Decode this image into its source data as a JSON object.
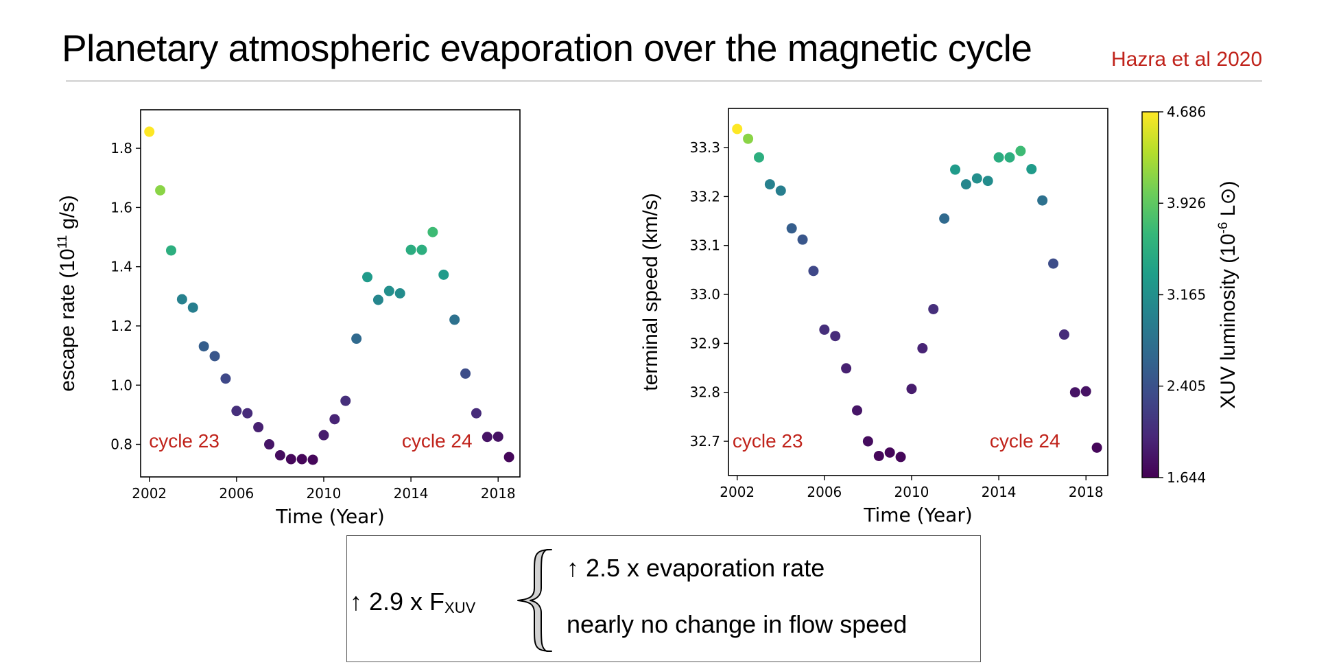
{
  "slide": {
    "title": "Planetary atmospheric evaporation over the magnetic cycle",
    "citation": "Hazra et al 2020",
    "colors": {
      "citation": "#c0231b",
      "annotation": "#c0231b"
    }
  },
  "chart_data": [
    {
      "type": "scatter",
      "xlabel": "Time (Year)",
      "ylabel": "escape rate (10",
      "ylabel_sup": "11",
      "ylabel_tail": " g/s)",
      "xlim": [
        2001.6,
        2019.0
      ],
      "ylim": [
        0.69,
        1.93
      ],
      "xticks": [
        2002,
        2006,
        2010,
        2014,
        2018
      ],
      "xtick_labels": [
        "2002",
        "2006",
        "2010",
        "2014",
        "2018"
      ],
      "yticks": [
        0.8,
        1.0,
        1.2,
        1.4,
        1.6,
        1.8
      ],
      "ytick_labels": [
        "0.8",
        "1.0",
        "1.2",
        "1.4",
        "1.6",
        "1.8"
      ],
      "annotations": [
        {
          "text": "cycle 23",
          "x": 2003.6,
          "y": 0.81
        },
        {
          "text": "cycle 24",
          "x": 2015.2,
          "y": 0.81
        }
      ],
      "series": [
        {
          "x": [
            2002.0,
            2002.5,
            2003.0,
            2003.5,
            2004.0,
            2004.5,
            2005.0,
            2005.5,
            2006.0,
            2006.5,
            2007.0,
            2007.5,
            2008.0,
            2008.5,
            2009.0,
            2009.5,
            2010.0,
            2010.5,
            2011.0,
            2011.5,
            2012.0,
            2012.5,
            2013.0,
            2013.5,
            2014.0,
            2014.5,
            2015.0,
            2015.5,
            2016.0,
            2016.5,
            2017.0,
            2017.5,
            2018.0,
            2018.5
          ],
          "y": [
            1.856,
            1.658,
            1.455,
            1.29,
            1.262,
            1.131,
            1.098,
            1.022,
            0.913,
            0.905,
            0.858,
            0.8,
            0.763,
            0.75,
            0.75,
            0.748,
            0.831,
            0.885,
            0.947,
            1.157,
            1.365,
            1.288,
            1.318,
            1.31,
            1.457,
            1.457,
            1.517,
            1.373,
            1.221,
            1.039,
            0.905,
            0.825,
            0.826,
            0.757
          ],
          "color_values": [
            4.686,
            4.15,
            3.55,
            2.98,
            2.95,
            2.55,
            2.45,
            2.3,
            2.05,
            2.02,
            1.92,
            1.82,
            1.74,
            1.7,
            1.69,
            1.7,
            1.88,
            1.95,
            2.05,
            2.68,
            3.3,
            3.05,
            3.15,
            3.12,
            3.52,
            3.55,
            3.72,
            3.3,
            2.78,
            2.35,
            2.02,
            1.8,
            1.79,
            1.7
          ]
        }
      ]
    },
    {
      "type": "scatter",
      "xlabel": "Time (Year)",
      "ylabel": "terminal speed (km/s)",
      "xlim": [
        2001.6,
        2019.0
      ],
      "ylim": [
        32.63,
        33.38
      ],
      "xticks": [
        2002,
        2006,
        2010,
        2014,
        2018
      ],
      "xtick_labels": [
        "2002",
        "2006",
        "2010",
        "2014",
        "2018"
      ],
      "yticks": [
        32.7,
        32.8,
        32.9,
        33.0,
        33.1,
        33.2,
        33.3
      ],
      "ytick_labels": [
        "32.7",
        "32.8",
        "32.9",
        "33.0",
        "33.1",
        "33.2",
        "33.3"
      ],
      "annotations": [
        {
          "text": "cycle 23",
          "x": 2003.4,
          "y": 32.7
        },
        {
          "text": "cycle 24",
          "x": 2015.2,
          "y": 32.7
        }
      ],
      "series": [
        {
          "x": [
            2002.0,
            2002.5,
            2003.0,
            2003.5,
            2004.0,
            2004.5,
            2005.0,
            2005.5,
            2006.0,
            2006.5,
            2007.0,
            2007.5,
            2008.0,
            2008.5,
            2009.0,
            2009.5,
            2010.0,
            2010.5,
            2011.0,
            2011.5,
            2012.0,
            2012.5,
            2013.0,
            2013.5,
            2014.0,
            2014.5,
            2015.0,
            2015.5,
            2016.0,
            2016.5,
            2017.0,
            2017.5,
            2018.0,
            2018.5
          ],
          "y": [
            33.338,
            33.318,
            33.28,
            33.225,
            33.212,
            33.135,
            33.112,
            33.048,
            32.928,
            32.915,
            32.849,
            32.763,
            32.7,
            32.67,
            32.677,
            32.668,
            32.807,
            32.89,
            32.97,
            33.155,
            33.255,
            33.225,
            33.237,
            33.232,
            33.28,
            33.28,
            33.293,
            33.256,
            33.192,
            33.063,
            32.918,
            32.8,
            32.802,
            32.687
          ],
          "color_values": [
            4.686,
            4.15,
            3.55,
            2.98,
            2.95,
            2.55,
            2.45,
            2.3,
            2.05,
            2.02,
            1.92,
            1.82,
            1.74,
            1.7,
            1.69,
            1.7,
            1.88,
            1.95,
            2.05,
            2.68,
            3.3,
            3.05,
            3.15,
            3.12,
            3.52,
            3.55,
            3.72,
            3.3,
            2.78,
            2.35,
            2.02,
            1.8,
            1.79,
            1.7
          ]
        }
      ]
    }
  ],
  "colorbar": {
    "label": "XUV luminosity (10",
    "label_sup": "-6",
    "label_tail": " L⊙)",
    "min": 1.644,
    "max": 4.686,
    "tick_labels": [
      "4.686",
      "3.926",
      "3.165",
      "2.405",
      "1.644"
    ],
    "tick_values": [
      4.686,
      3.926,
      3.165,
      2.405,
      1.644
    ],
    "colormap": "viridis"
  },
  "summary": {
    "cause_prefix": "↑ 2.9 x F",
    "cause_sub": "XUV",
    "effect_rate": "↑ 2.5 x evaporation rate",
    "effect_speed": "nearly no change in flow speed"
  }
}
